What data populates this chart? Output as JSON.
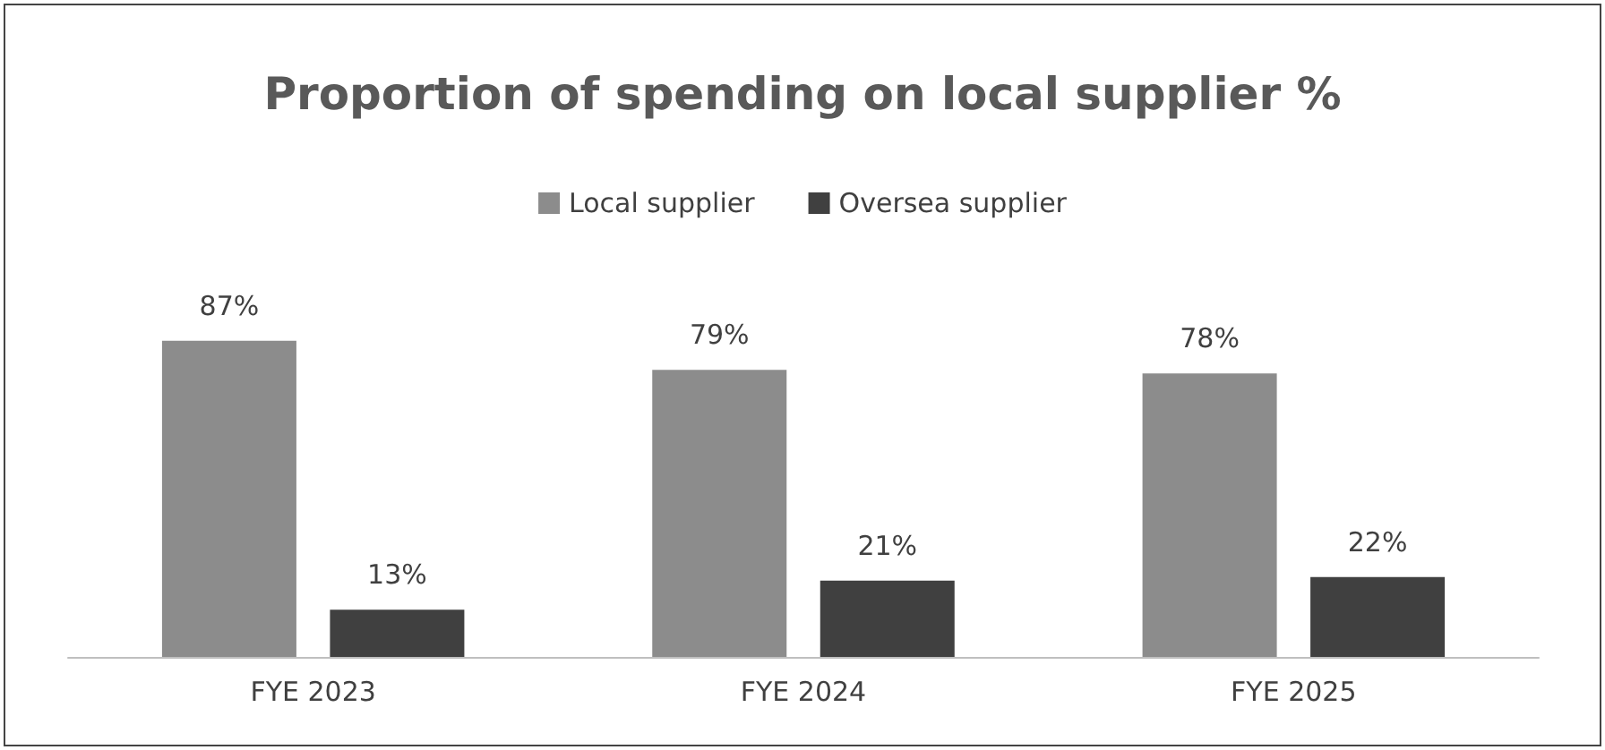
{
  "chart_data": {
    "type": "bar",
    "title": "Proportion of spending on local supplier %",
    "categories": [
      "FYE 2023",
      "FYE 2024",
      "FYE 2025"
    ],
    "series": [
      {
        "name": "Local supplier",
        "color": "#8c8c8c",
        "values": [
          87,
          79,
          78
        ],
        "value_labels": [
          "87%",
          "79%",
          "78%"
        ]
      },
      {
        "name": "Oversea supplier",
        "color": "#404040",
        "values": [
          13,
          21,
          22
        ],
        "value_labels": [
          "13%",
          "21%",
          "22%"
        ]
      }
    ],
    "legend": "top"
  }
}
